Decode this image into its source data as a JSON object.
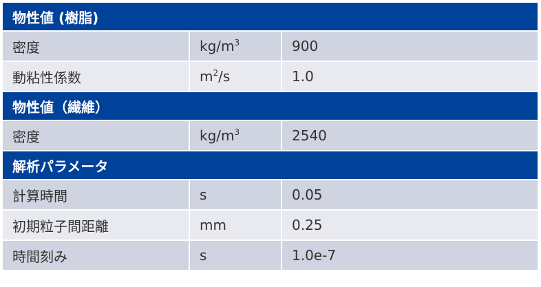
{
  "colors": {
    "header": "#00419A",
    "row_dark": "#CFD4E0",
    "row_light": "#E9EAF0"
  },
  "sections": [
    {
      "title": "物性値 (樹脂)",
      "rows": [
        {
          "name": "密度",
          "unit_base": "kg/m",
          "unit_sup": "3",
          "unit_tail": "",
          "value": "900"
        },
        {
          "name": "動粘性係数",
          "unit_base": "m",
          "unit_sup": "2",
          "unit_tail": "/s",
          "value": "1.0"
        }
      ]
    },
    {
      "title": "物性値（繊維）",
      "rows": [
        {
          "name": "密度",
          "unit_base": "kg/m",
          "unit_sup": "3",
          "unit_tail": "",
          "value": "2540"
        }
      ]
    },
    {
      "title": "解析パラメータ",
      "rows": [
        {
          "name": "計算時間",
          "unit_base": "s",
          "unit_sup": "",
          "unit_tail": "",
          "value": "0.05"
        },
        {
          "name": "初期粒子間距離",
          "unit_base": "mm",
          "unit_sup": "",
          "unit_tail": "",
          "value": "0.25"
        },
        {
          "name": "時間刻み",
          "unit_base": "s",
          "unit_sup": "",
          "unit_tail": "",
          "value": "1.0e-7"
        }
      ]
    }
  ]
}
